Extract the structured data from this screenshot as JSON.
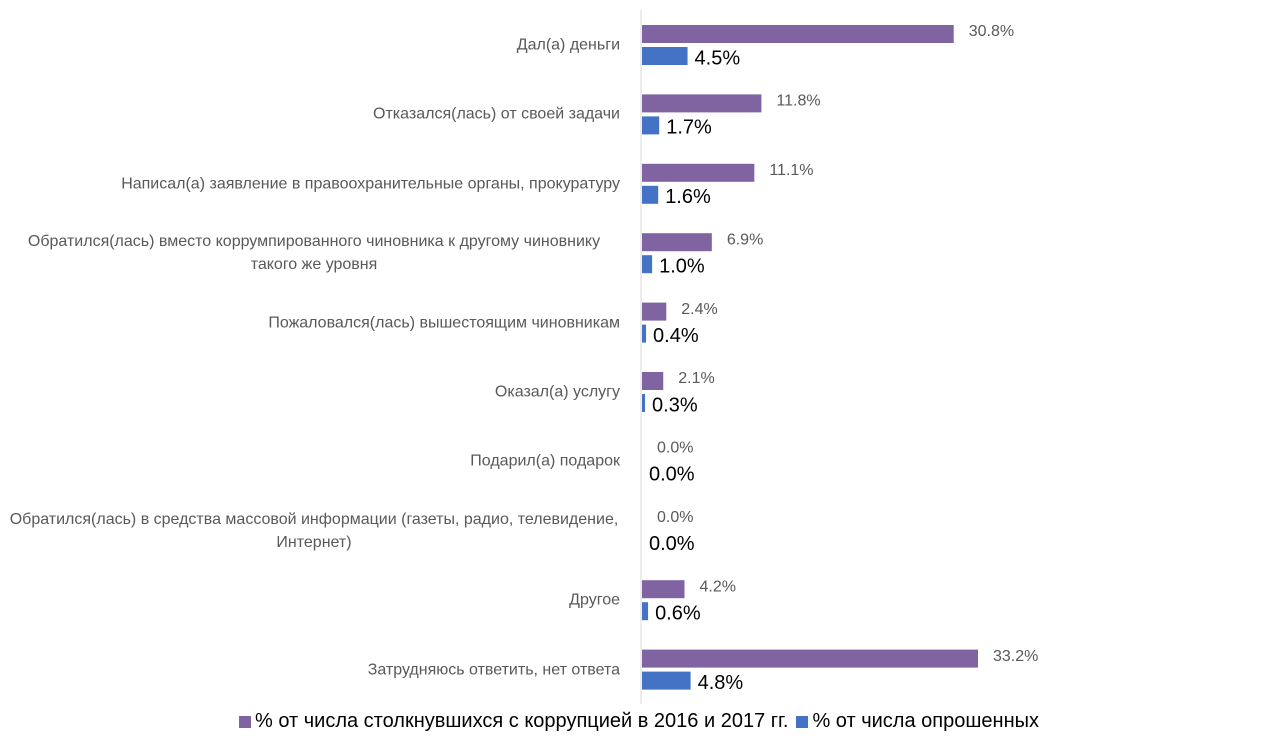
{
  "chart_data": {
    "type": "bar",
    "orientation": "horizontal",
    "categories": [
      "Дал(а) деньги",
      "Отказался(лась) от своей задачи",
      "Написал(а) заявление в правоохранительные органы, прокуратуру",
      "Обратился(лась) вместо коррумпированного чиновника к другому чиновнику такого же уровня",
      "Пожаловался(лась) вышестоящим чиновникам",
      "Оказал(а) услугу",
      "Подарил(а) подарок",
      "Обратился(лась) в средства массовой информации (газеты, радио, телевидение, Интернет)",
      "Другое",
      "Затрудняюсь ответить, нет ответа"
    ],
    "series": [
      {
        "name": "% от числа столкнувшихся с коррупцией в 2016 и 2017 гг.",
        "color": "#8064a2",
        "values": [
          30.8,
          11.8,
          11.1,
          6.9,
          2.4,
          2.1,
          0.0,
          0.0,
          4.2,
          33.2
        ],
        "value_labels": [
          "30.8%",
          "11.8%",
          "11.1%",
          "6.9%",
          "2.4%",
          "2.1%",
          "0.0%",
          "0.0%",
          "4.2%",
          "33.2%"
        ]
      },
      {
        "name": "% от числа опрошенных",
        "color": "#4472c4",
        "values": [
          4.5,
          1.7,
          1.6,
          1.0,
          0.4,
          0.3,
          0.0,
          0.0,
          0.6,
          4.8
        ],
        "value_labels": [
          "4.5%",
          "1.7%",
          "1.6%",
          "1.0%",
          "0.4%",
          "0.3%",
          "0.0%",
          "0.0%",
          "0.6%",
          "4.8%"
        ]
      }
    ],
    "legend": "bottom"
  }
}
